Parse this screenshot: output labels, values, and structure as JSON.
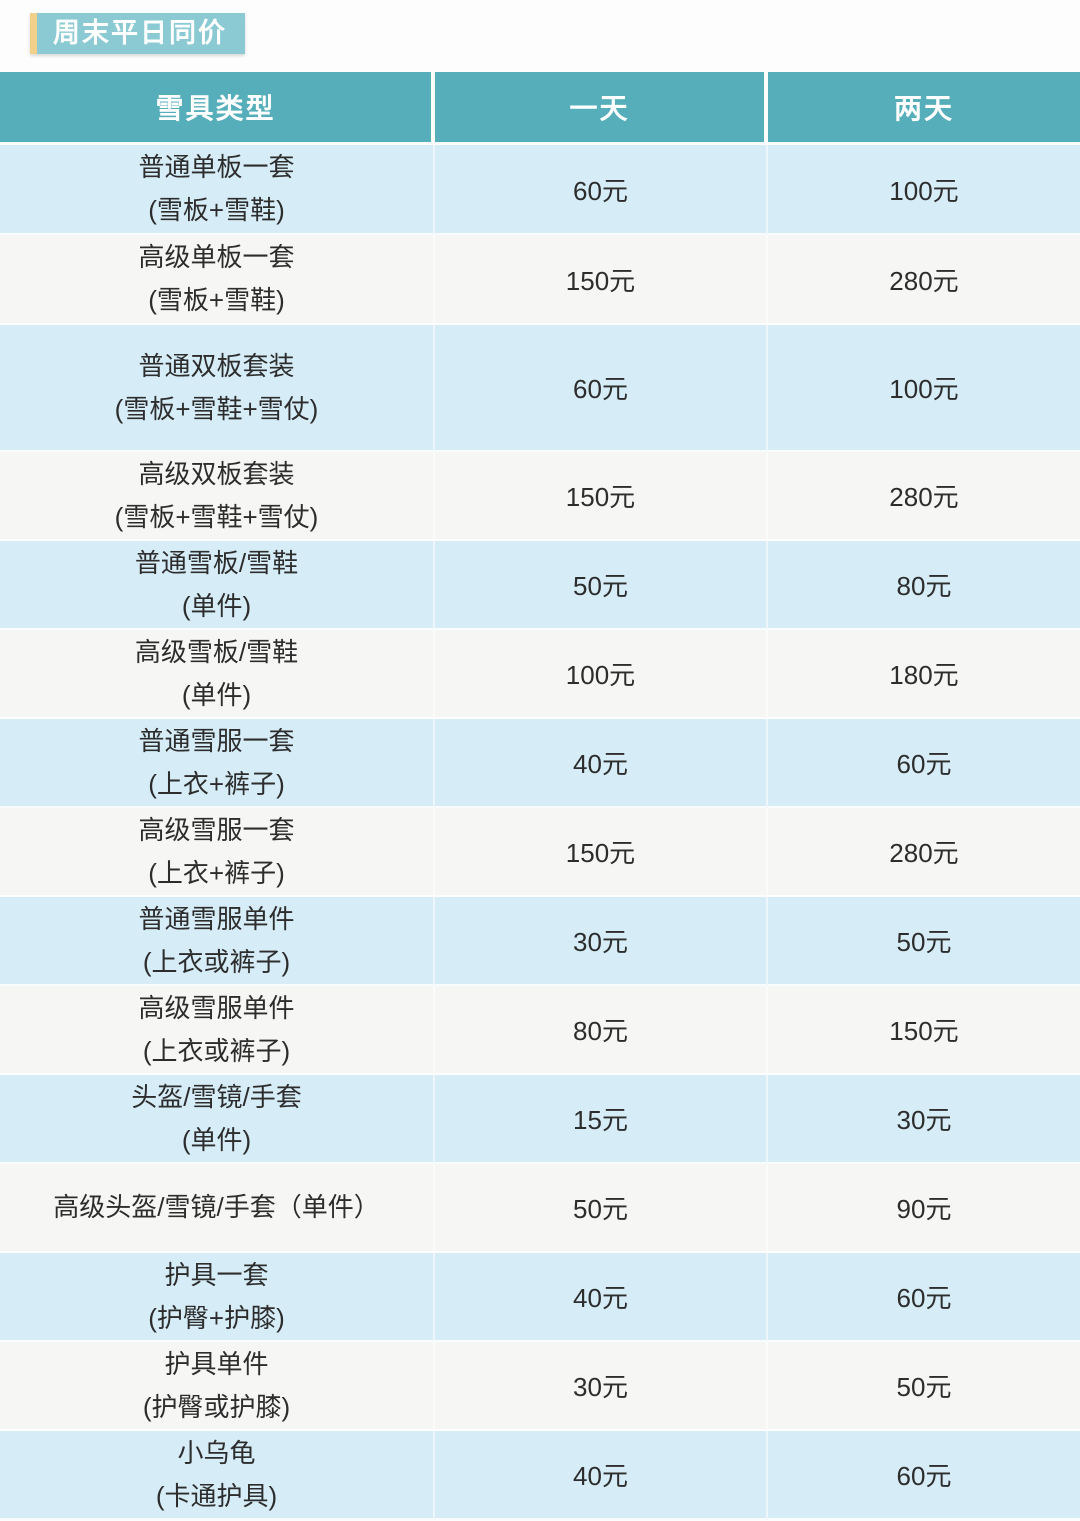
{
  "badge": {
    "label": "周末平日同价"
  },
  "table": {
    "columns": [
      "雪具类型",
      "一天",
      "两天"
    ],
    "rows": [
      {
        "name": "普通单板一套",
        "sub": "(雪板+雪鞋)",
        "one_day": "60元",
        "two_day": "100元"
      },
      {
        "name": "高级单板一套",
        "sub": "(雪板+雪鞋)",
        "one_day": "150元",
        "two_day": "280元"
      },
      {
        "name": "普通双板套装",
        "sub": "(雪板+雪鞋+雪仗)",
        "one_day": "60元",
        "two_day": "100元"
      },
      {
        "name": "高级双板套装",
        "sub": "(雪板+雪鞋+雪仗)",
        "one_day": "150元",
        "two_day": "280元"
      },
      {
        "name": "普通雪板/雪鞋",
        "sub": "(单件)",
        "one_day": "50元",
        "two_day": "80元"
      },
      {
        "name": "高级雪板/雪鞋",
        "sub": "(单件)",
        "one_day": "100元",
        "two_day": "180元"
      },
      {
        "name": "普通雪服一套",
        "sub": "(上衣+裤子)",
        "one_day": "40元",
        "two_day": "60元"
      },
      {
        "name": "高级雪服一套",
        "sub": "(上衣+裤子)",
        "one_day": "150元",
        "two_day": "280元"
      },
      {
        "name": "普通雪服单件",
        "sub": "(上衣或裤子)",
        "one_day": "30元",
        "two_day": "50元"
      },
      {
        "name": "高级雪服单件",
        "sub": "(上衣或裤子)",
        "one_day": "80元",
        "two_day": "150元"
      },
      {
        "name": "头盔/雪镜/手套",
        "sub": "(单件)",
        "one_day": "15元",
        "two_day": "30元"
      },
      {
        "name": "高级头盔/雪镜/手套（单件）",
        "sub": "",
        "one_day": "50元",
        "two_day": "90元"
      },
      {
        "name": "护具一套",
        "sub": "(护臀+护膝)",
        "one_day": "40元",
        "two_day": "60元"
      },
      {
        "name": "护具单件",
        "sub": "(护臀或护膝)",
        "one_day": "30元",
        "two_day": "50元"
      },
      {
        "name": "小乌龟",
        "sub": "(卡通护具)",
        "one_day": "40元",
        "two_day": "60元"
      }
    ]
  },
  "colors": {
    "page_bg": "#fdfdfd",
    "header_bg": "#55AEBA",
    "header_text": "#FFFFFF",
    "badge_bg": "#8BCAD3",
    "badge_accent": "#F1D189",
    "row_blue": "#D6EDF8",
    "row_white": "#F6F7F5",
    "text": "#2D2D2D"
  }
}
